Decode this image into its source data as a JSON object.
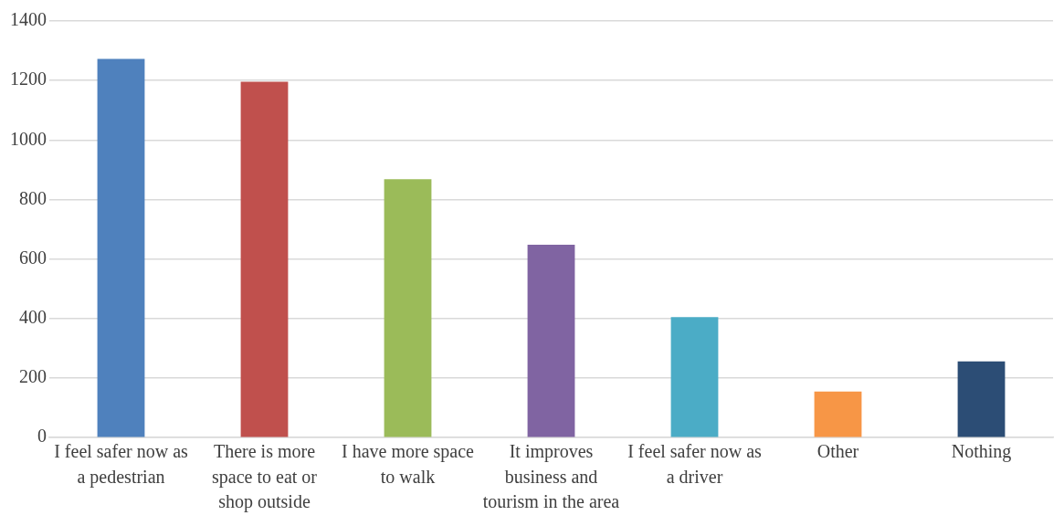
{
  "chart_data": {
    "type": "bar",
    "categories": [
      "I feel safer now as a pedestrian",
      "There is more space to eat or shop outside",
      "I have more space to walk",
      "It improves business and tourism in the area",
      "I feel safer now as a driver",
      "Other",
      "Nothing"
    ],
    "values": [
      1273,
      1196,
      868,
      648,
      405,
      155,
      256
    ],
    "colors": [
      "#4f81bd",
      "#c0504d",
      "#9bbb59",
      "#8064a2",
      "#4bacc6",
      "#f79646",
      "#2c4d75"
    ],
    "ylim": [
      0,
      1400
    ],
    "yticks": [
      0,
      200,
      400,
      600,
      800,
      1000,
      1200,
      1400
    ],
    "grid": "y",
    "legend": false
  }
}
